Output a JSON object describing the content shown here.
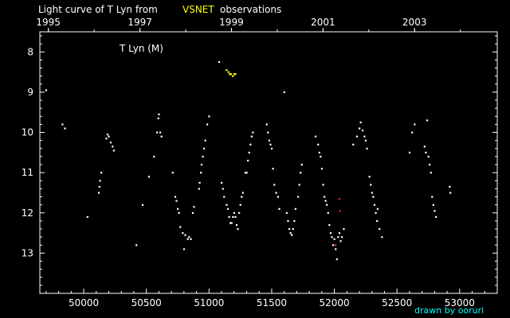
{
  "chart_data": {
    "type": "scatter",
    "title_prefix": "Light curve of T Lyn from",
    "title_source": "VSNET",
    "title_suffix": "observations",
    "inner_label": "T Lyn (M)",
    "credit": "drawn by ooruri",
    "x_axis": {
      "range": [
        49650,
        53300
      ],
      "ticks": [
        50000,
        50500,
        51000,
        51500,
        52000,
        52500,
        53000
      ],
      "tick_labels": [
        "50000",
        "50500",
        "51000",
        "51500",
        "52000",
        "52500",
        "53000"
      ],
      "minor_step": 100
    },
    "top_axis": {
      "years": [
        {
          "label": "1995",
          "jd": 49718
        },
        {
          "label": "1997",
          "jd": 50449
        },
        {
          "label": "1999",
          "jd": 51179
        },
        {
          "label": "2001",
          "jd": 51910
        },
        {
          "label": "2003",
          "jd": 52640
        }
      ]
    },
    "y_axis": {
      "range": [
        7.5,
        14.0
      ],
      "inverted": true,
      "ticks": [
        8,
        9,
        10,
        11,
        12,
        13
      ],
      "tick_labels": [
        "8",
        "9",
        "10",
        "11",
        "12",
        "13"
      ],
      "minor_step": 0.2
    },
    "grid": false,
    "colors": {
      "background": "#000000",
      "axes": "#ffffff",
      "highlight": "#ffff00",
      "credit": "#00ffff"
    },
    "series": [
      {
        "name": "",
        "color": "#ffffff",
        "points": [
          [
            49700,
            8.95
          ],
          [
            49830,
            9.8
          ],
          [
            49850,
            9.9
          ],
          [
            50030,
            12.1
          ],
          [
            50120,
            11.5
          ],
          [
            50125,
            11.35
          ],
          [
            50130,
            11.2
          ],
          [
            50140,
            11.0
          ],
          [
            50180,
            10.15
          ],
          [
            50190,
            10.05
          ],
          [
            50200,
            10.1
          ],
          [
            50215,
            10.25
          ],
          [
            50230,
            10.35
          ],
          [
            50240,
            10.45
          ],
          [
            50420,
            12.8
          ],
          [
            50470,
            11.8
          ],
          [
            50520,
            11.1
          ],
          [
            50560,
            10.6
          ],
          [
            50585,
            10.0
          ],
          [
            50595,
            9.65
          ],
          [
            50600,
            9.55
          ],
          [
            50610,
            10.0
          ],
          [
            50620,
            10.1
          ],
          [
            50710,
            11.0
          ],
          [
            50730,
            11.6
          ],
          [
            50740,
            11.7
          ],
          [
            50750,
            11.9
          ],
          [
            50760,
            12.0
          ],
          [
            50770,
            12.35
          ],
          [
            50790,
            12.5
          ],
          [
            50800,
            12.9
          ],
          [
            50810,
            12.55
          ],
          [
            50830,
            12.65
          ],
          [
            50840,
            12.6
          ],
          [
            50855,
            12.65
          ],
          [
            50870,
            12.0
          ],
          [
            50880,
            11.85
          ],
          [
            50920,
            11.4
          ],
          [
            50925,
            11.25
          ],
          [
            50935,
            11.0
          ],
          [
            50940,
            10.8
          ],
          [
            50950,
            10.6
          ],
          [
            50960,
            10.4
          ],
          [
            50970,
            10.2
          ],
          [
            50985,
            9.8
          ],
          [
            51000,
            9.6
          ],
          [
            51080,
            8.25
          ],
          [
            51100,
            11.25
          ],
          [
            51110,
            11.4
          ],
          [
            51120,
            11.6
          ],
          [
            51140,
            11.8
          ],
          [
            51150,
            11.9
          ],
          [
            51160,
            12.1
          ],
          [
            51170,
            12.25
          ],
          [
            51180,
            12.25
          ],
          [
            51190,
            12.1
          ],
          [
            51200,
            12.0
          ],
          [
            51210,
            12.1
          ],
          [
            51220,
            12.3
          ],
          [
            51230,
            12.4
          ],
          [
            51240,
            12.0
          ],
          [
            51250,
            11.8
          ],
          [
            51260,
            11.6
          ],
          [
            51270,
            11.5
          ],
          [
            51290,
            11.0
          ],
          [
            51300,
            11.0
          ],
          [
            51310,
            10.7
          ],
          [
            51320,
            10.5
          ],
          [
            51330,
            10.3
          ],
          [
            51340,
            10.1
          ],
          [
            51350,
            10.0
          ],
          [
            51460,
            9.8
          ],
          [
            51470,
            10.0
          ],
          [
            51480,
            10.2
          ],
          [
            51490,
            10.3
          ],
          [
            51500,
            10.4
          ],
          [
            51510,
            10.9
          ],
          [
            51520,
            11.3
          ],
          [
            51535,
            11.5
          ],
          [
            51550,
            11.6
          ],
          [
            51560,
            11.9
          ],
          [
            51600,
            9.0
          ],
          [
            51620,
            12.0
          ],
          [
            51630,
            12.2
          ],
          [
            51640,
            12.4
          ],
          [
            51650,
            12.5
          ],
          [
            51660,
            12.55
          ],
          [
            51670,
            12.4
          ],
          [
            51680,
            12.2
          ],
          [
            51690,
            11.9
          ],
          [
            51710,
            11.6
          ],
          [
            51720,
            11.3
          ],
          [
            51730,
            11.0
          ],
          [
            51740,
            10.8
          ],
          [
            51850,
            10.1
          ],
          [
            51870,
            10.3
          ],
          [
            51880,
            10.5
          ],
          [
            51890,
            10.6
          ],
          [
            51900,
            10.9
          ],
          [
            51910,
            11.3
          ],
          [
            51920,
            11.6
          ],
          [
            51930,
            11.7
          ],
          [
            51940,
            11.8
          ],
          [
            51950,
            12.0
          ],
          [
            51960,
            12.3
          ],
          [
            51970,
            12.5
          ],
          [
            51980,
            12.6
          ],
          [
            51990,
            12.8
          ],
          [
            52000,
            12.65
          ],
          [
            52010,
            12.9
          ],
          [
            52020,
            13.15
          ],
          [
            52030,
            12.6
          ],
          [
            52040,
            12.5
          ],
          [
            52050,
            12.7
          ],
          [
            52060,
            12.6
          ],
          [
            52075,
            12.4
          ],
          [
            52150,
            10.3
          ],
          [
            52180,
            10.1
          ],
          [
            52200,
            9.9
          ],
          [
            52210,
            9.75
          ],
          [
            52225,
            9.95
          ],
          [
            52240,
            10.1
          ],
          [
            52250,
            10.2
          ],
          [
            52260,
            10.4
          ],
          [
            52280,
            11.1
          ],
          [
            52290,
            11.3
          ],
          [
            52300,
            11.5
          ],
          [
            52310,
            11.6
          ],
          [
            52320,
            11.8
          ],
          [
            52330,
            12.0
          ],
          [
            52340,
            12.2
          ],
          [
            52345,
            11.9
          ],
          [
            52360,
            12.4
          ],
          [
            52380,
            12.6
          ],
          [
            52600,
            10.5
          ],
          [
            52620,
            10.0
          ],
          [
            52640,
            9.8
          ],
          [
            52720,
            10.35
          ],
          [
            52730,
            10.5
          ],
          [
            52740,
            9.7
          ],
          [
            52750,
            10.6
          ],
          [
            52760,
            10.8
          ],
          [
            52770,
            11.0
          ],
          [
            52780,
            11.6
          ],
          [
            52790,
            11.8
          ],
          [
            52800,
            11.95
          ],
          [
            52810,
            12.1
          ],
          [
            52920,
            11.35
          ],
          [
            52925,
            11.5
          ]
        ]
      },
      {
        "name": "",
        "color": "#ffff00",
        "points": [
          [
            51140,
            8.45
          ],
          [
            51155,
            8.5
          ],
          [
            51165,
            8.55
          ],
          [
            51175,
            8.55
          ],
          [
            51190,
            8.6
          ],
          [
            51200,
            8.55
          ],
          [
            51210,
            8.55
          ]
        ]
      },
      {
        "name": "",
        "color": "#ff2020",
        "points": [
          [
            52010,
            12.8
          ],
          [
            52040,
            11.65
          ],
          [
            52045,
            11.95
          ]
        ]
      }
    ]
  }
}
